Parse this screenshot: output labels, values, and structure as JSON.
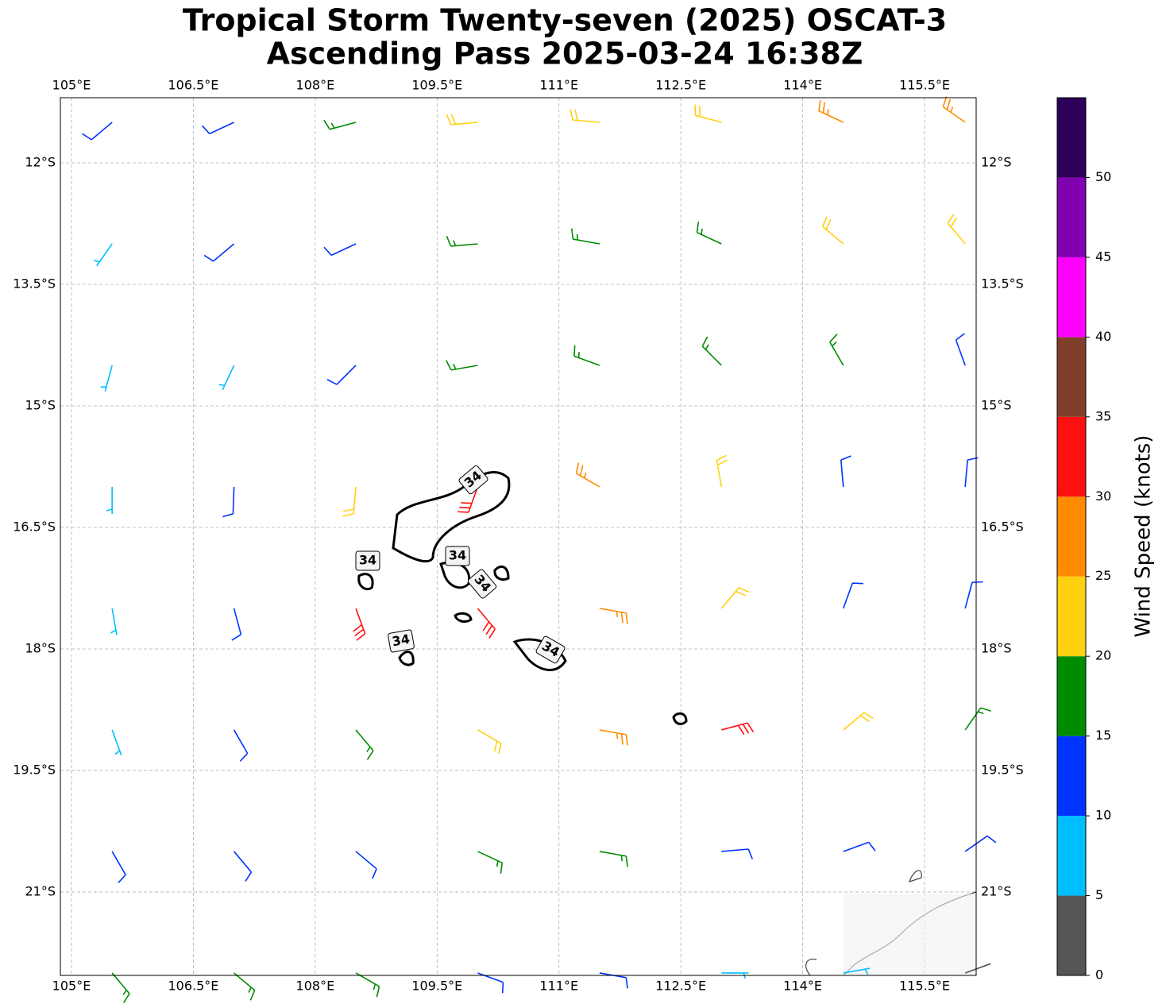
{
  "chart_data": {
    "type": "barbs",
    "title": [
      "Tropical Storm Twenty-seven (2025) OSCAT-3",
      "Ascending Pass 2025-03-24 16:38Z"
    ],
    "xlim": [
      104.863,
      116.135
    ],
    "ylim": [
      -22.03,
      -11.196
    ],
    "xticks": [
      {
        "value": 105,
        "label": "105°E"
      },
      {
        "value": 106.5,
        "label": "106.5°E"
      },
      {
        "value": 108,
        "label": "108°E"
      },
      {
        "value": 109.5,
        "label": "109.5°E"
      },
      {
        "value": 111,
        "label": "111°E"
      },
      {
        "value": 112.5,
        "label": "112.5°E"
      },
      {
        "value": 114,
        "label": "114°E"
      },
      {
        "value": 115.5,
        "label": "115.5°E"
      }
    ],
    "yticks": [
      {
        "value": -12,
        "label": "12°S"
      },
      {
        "value": -13.5,
        "label": "13.5°S"
      },
      {
        "value": -15,
        "label": "15°S"
      },
      {
        "value": -16.5,
        "label": "16.5°S"
      },
      {
        "value": -18,
        "label": "18°S"
      },
      {
        "value": -19.5,
        "label": "19.5°S"
      },
      {
        "value": -21,
        "label": "21°S"
      }
    ],
    "grid": true,
    "barbs": {
      "lon": [
        105.5,
        107,
        108.5,
        110,
        111.5,
        113,
        114.5,
        116
      ],
      "lat": [
        -11.5,
        -13,
        -14.5,
        -16,
        -17.5,
        -19,
        -20.5,
        -22
      ],
      "speed": [
        [
          10,
          12,
          17,
          20,
          22,
          24,
          26,
          27
        ],
        [
          8,
          10,
          14,
          17,
          19,
          18,
          20,
          22
        ],
        [
          7,
          9,
          12,
          16,
          19,
          17,
          15,
          13
        ],
        [
          7,
          11,
          22,
          30,
          25,
          20,
          14,
          11
        ],
        [
          7,
          12,
          30,
          32,
          28,
          22,
          14,
          11
        ],
        [
          8,
          11,
          17,
          24,
          27,
          30,
          20,
          15
        ],
        [
          12,
          13,
          14,
          16,
          17,
          14,
          12,
          10
        ],
        [
          17,
          18,
          16,
          14,
          13,
          8,
          6,
          4
        ]
      ],
      "direction": [
        [
          230,
          245,
          255,
          265,
          275,
          285,
          295,
          305
        ],
        [
          215,
          230,
          245,
          265,
          280,
          295,
          310,
          320
        ],
        [
          195,
          205,
          225,
          260,
          290,
          315,
          330,
          340
        ],
        [
          180,
          182,
          185,
          200,
          300,
          350,
          355,
          5
        ],
        [
          170,
          165,
          160,
          140,
          100,
          40,
          20,
          15
        ],
        [
          160,
          150,
          140,
          120,
          100,
          75,
          50,
          35
        ],
        [
          150,
          140,
          130,
          115,
          100,
          85,
          70,
          55
        ],
        [
          140,
          130,
          120,
          110,
          100,
          90,
          80,
          70
        ]
      ]
    },
    "contour_labels": [
      "34",
      "34",
      "34",
      "34",
      "34",
      "34"
    ],
    "colorbar": {
      "label": "Wind Speed (knots)",
      "bounds": [
        0,
        5,
        10,
        15,
        20,
        25,
        30,
        35,
        40,
        45,
        50,
        55
      ],
      "colors": [
        "#555555",
        "#00bfff",
        "#0033ff",
        "#008c00",
        "#ffd10f",
        "#ff8c00",
        "#ff1010",
        "#7f3f2a",
        "#ff00ff",
        "#8000b0",
        "#2d005a"
      ],
      "ticks": [
        0,
        5,
        10,
        15,
        20,
        25,
        30,
        35,
        40,
        45,
        50
      ]
    }
  }
}
